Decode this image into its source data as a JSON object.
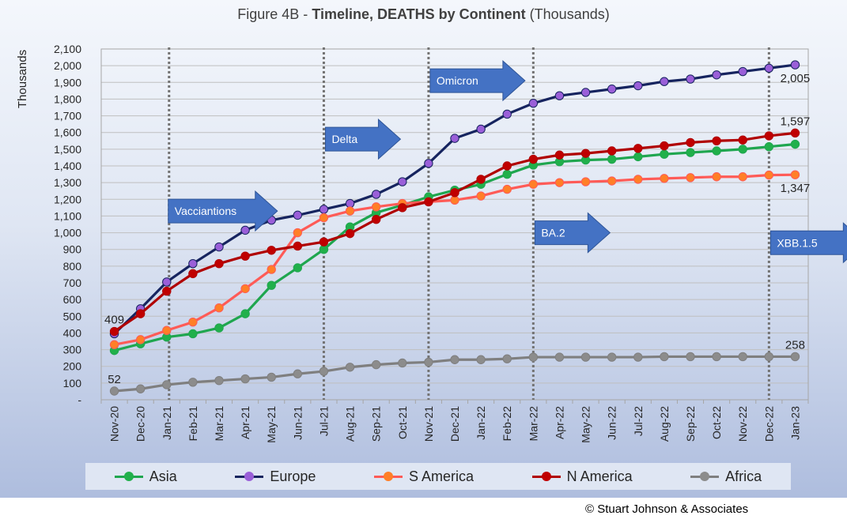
{
  "title": {
    "prefix": "Figure 4B - ",
    "bold": "Timeline, DEATHS by Continent",
    "suffix": " (Thousands)"
  },
  "copyright": "© Stuart Johnson & Associates",
  "chart_data": {
    "type": "line",
    "ylabel": "Thousands",
    "ylim": [
      0,
      2100
    ],
    "ytick_step": 100,
    "ytick_labels": [
      "-",
      "100",
      "200",
      "300",
      "400",
      "500",
      "600",
      "700",
      "800",
      "900",
      "1,000",
      "1,100",
      "1,200",
      "1,300",
      "1,400",
      "1,500",
      "1,600",
      "1,700",
      "1,800",
      "1,900",
      "2,000",
      "2,100"
    ],
    "grid": true,
    "legend_position": "bottom",
    "categories": [
      "Nov-20",
      "Dec-20",
      "Jan-21",
      "Feb-21",
      "Mar-21",
      "Apr-21",
      "May-21",
      "Jun-21",
      "Jul-21",
      "Aug-21",
      "Sep-21",
      "Oct-21",
      "Nov-21",
      "Dec-21",
      "Jan-22",
      "Feb-22",
      "Mar-22",
      "Apr-22",
      "May-22",
      "Jun-22",
      "Jul-22",
      "Aug-22",
      "Sep-22",
      "Oct-22",
      "Nov-22",
      "Dec-22",
      "Jan-23"
    ],
    "series": [
      {
        "name": "Asia",
        "line_color": "#1fa64f",
        "marker_color": "#21b04b",
        "values": [
          295,
          335,
          375,
          395,
          430,
          515,
          685,
          790,
          900,
          1035,
          1120,
          1165,
          1215,
          1255,
          1290,
          1350,
          1405,
          1425,
          1435,
          1440,
          1455,
          1470,
          1480,
          1490,
          1500,
          1515,
          1530
        ]
      },
      {
        "name": "Europe",
        "line_color": "#16245f",
        "marker_color": "#9a5fd8",
        "values": [
          395,
          545,
          705,
          815,
          915,
          1015,
          1075,
          1105,
          1140,
          1175,
          1230,
          1305,
          1415,
          1565,
          1620,
          1710,
          1775,
          1820,
          1840,
          1860,
          1880,
          1905,
          1920,
          1945,
          1965,
          1985,
          2005
        ]
      },
      {
        "name": "S America",
        "line_color": "#ff5b57",
        "marker_color": "#ff7f27",
        "values": [
          330,
          360,
          415,
          465,
          550,
          665,
          780,
          1000,
          1090,
          1130,
          1155,
          1175,
          1185,
          1195,
          1220,
          1260,
          1290,
          1300,
          1305,
          1310,
          1320,
          1325,
          1330,
          1335,
          1335,
          1345,
          1347
        ]
      },
      {
        "name": "N America",
        "line_color": "#b00000",
        "marker_color": "#c00000",
        "values": [
          409,
          515,
          650,
          755,
          815,
          860,
          895,
          920,
          945,
          995,
          1080,
          1150,
          1185,
          1240,
          1320,
          1400,
          1440,
          1465,
          1475,
          1490,
          1505,
          1520,
          1540,
          1550,
          1555,
          1580,
          1597
        ]
      },
      {
        "name": "Africa",
        "line_color": "#7f7f7f",
        "marker_color": "#8c8c8c",
        "values": [
          52,
          65,
          90,
          105,
          115,
          125,
          135,
          155,
          170,
          195,
          210,
          220,
          225,
          240,
          240,
          245,
          255,
          255,
          255,
          255,
          255,
          258,
          258,
          258,
          258,
          258,
          258
        ]
      }
    ],
    "data_labels": [
      {
        "text": "409",
        "series": "N America",
        "index": 0,
        "pos": "above"
      },
      {
        "text": "52",
        "series": "Africa",
        "index": 0,
        "pos": "above"
      },
      {
        "text": "2,005",
        "series": "Europe",
        "index": 26,
        "pos": "below"
      },
      {
        "text": "1,597",
        "series": "N America",
        "index": 26,
        "pos": "above"
      },
      {
        "text": "1,347",
        "series": "S America",
        "index": 26,
        "pos": "below"
      },
      {
        "text": "258",
        "series": "Africa",
        "index": 26,
        "pos": "above"
      }
    ],
    "vertical_markers": [
      {
        "index": 2,
        "label": "Vacciantions",
        "arrow_at": 1130
      },
      {
        "index": 8,
        "label": "Delta",
        "arrow_at": 1560
      },
      {
        "index": 12,
        "label": "Omicron",
        "arrow_at": 1910
      },
      {
        "index": 16,
        "label": "BA.2",
        "arrow_at": 1000
      },
      {
        "index": 25,
        "label": "XBB.1.5",
        "arrow_at": 940
      }
    ]
  }
}
